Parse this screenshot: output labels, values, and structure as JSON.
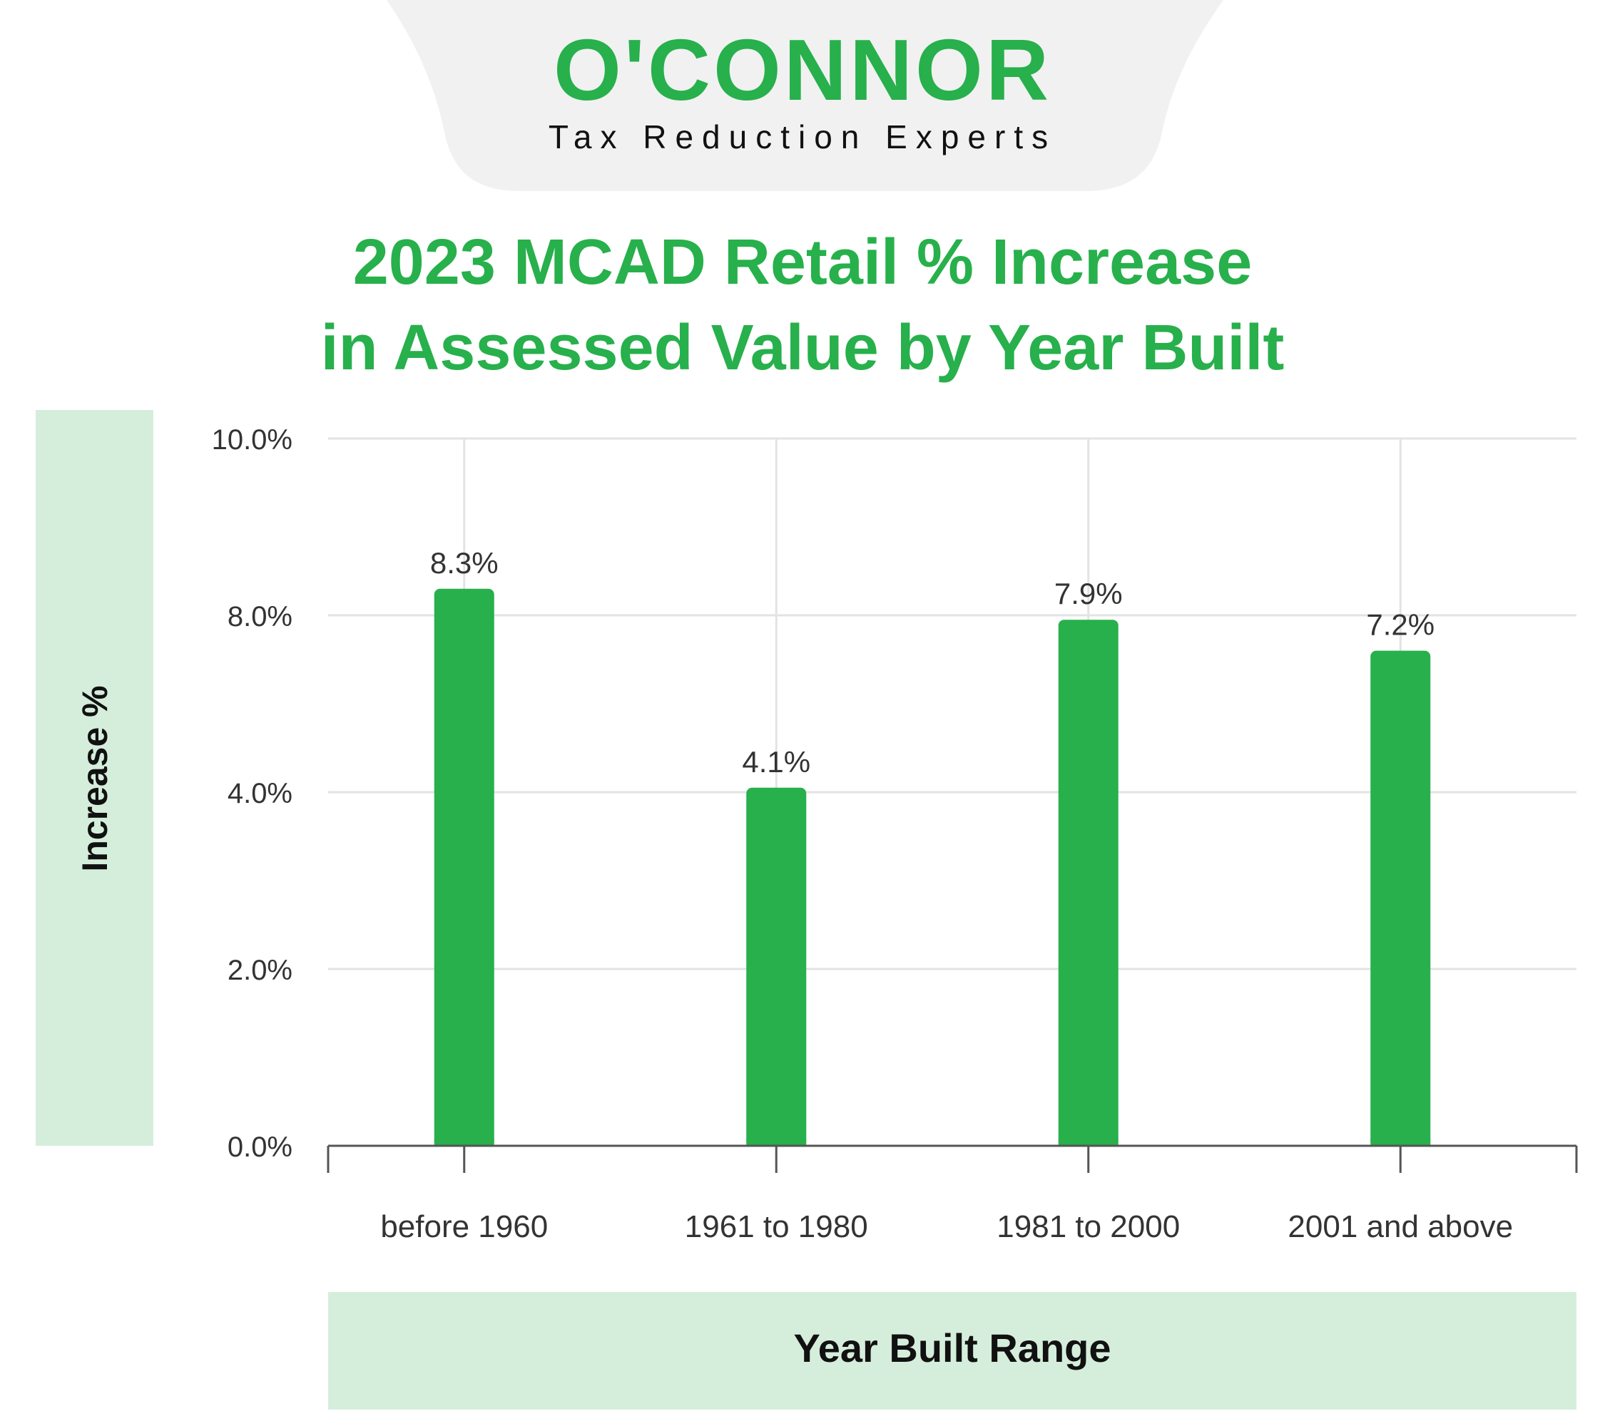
{
  "brand": {
    "name": "O'CONNOR",
    "tagline": "Tax Reduction Experts",
    "accent_color": "#27b04b",
    "tab_color": "#f1f1f1"
  },
  "chart_data": {
    "type": "bar",
    "title": "2023 MCAD Retail % Increase in Assessed Value by Year Built",
    "title_lines": [
      "2023 MCAD Retail % Increase",
      "in Assessed Value by Year Built"
    ],
    "xlabel": "Year Built Range",
    "ylabel": "Increase %",
    "categories": [
      "before 1960",
      "1961 to 1980",
      "1981 to 2000",
      "2001 and above"
    ],
    "values": [
      8.3,
      4.1,
      7.9,
      7.2
    ],
    "data_labels": [
      "8.3%",
      "4.1%",
      "7.9%",
      "7.2%"
    ],
    "y_ticks": [
      {
        "value": 0,
        "label": "0.0%"
      },
      {
        "value": 2,
        "label": "2.0%"
      },
      {
        "value": 4,
        "label": "4.0%"
      },
      {
        "value": 8,
        "label": "8.0%"
      },
      {
        "value": 10,
        "label": "10.0%"
      }
    ],
    "grid": true,
    "bar_color": "#27b04b",
    "label_panel_color": "#d5eedc",
    "title_color": "#27b04b"
  }
}
